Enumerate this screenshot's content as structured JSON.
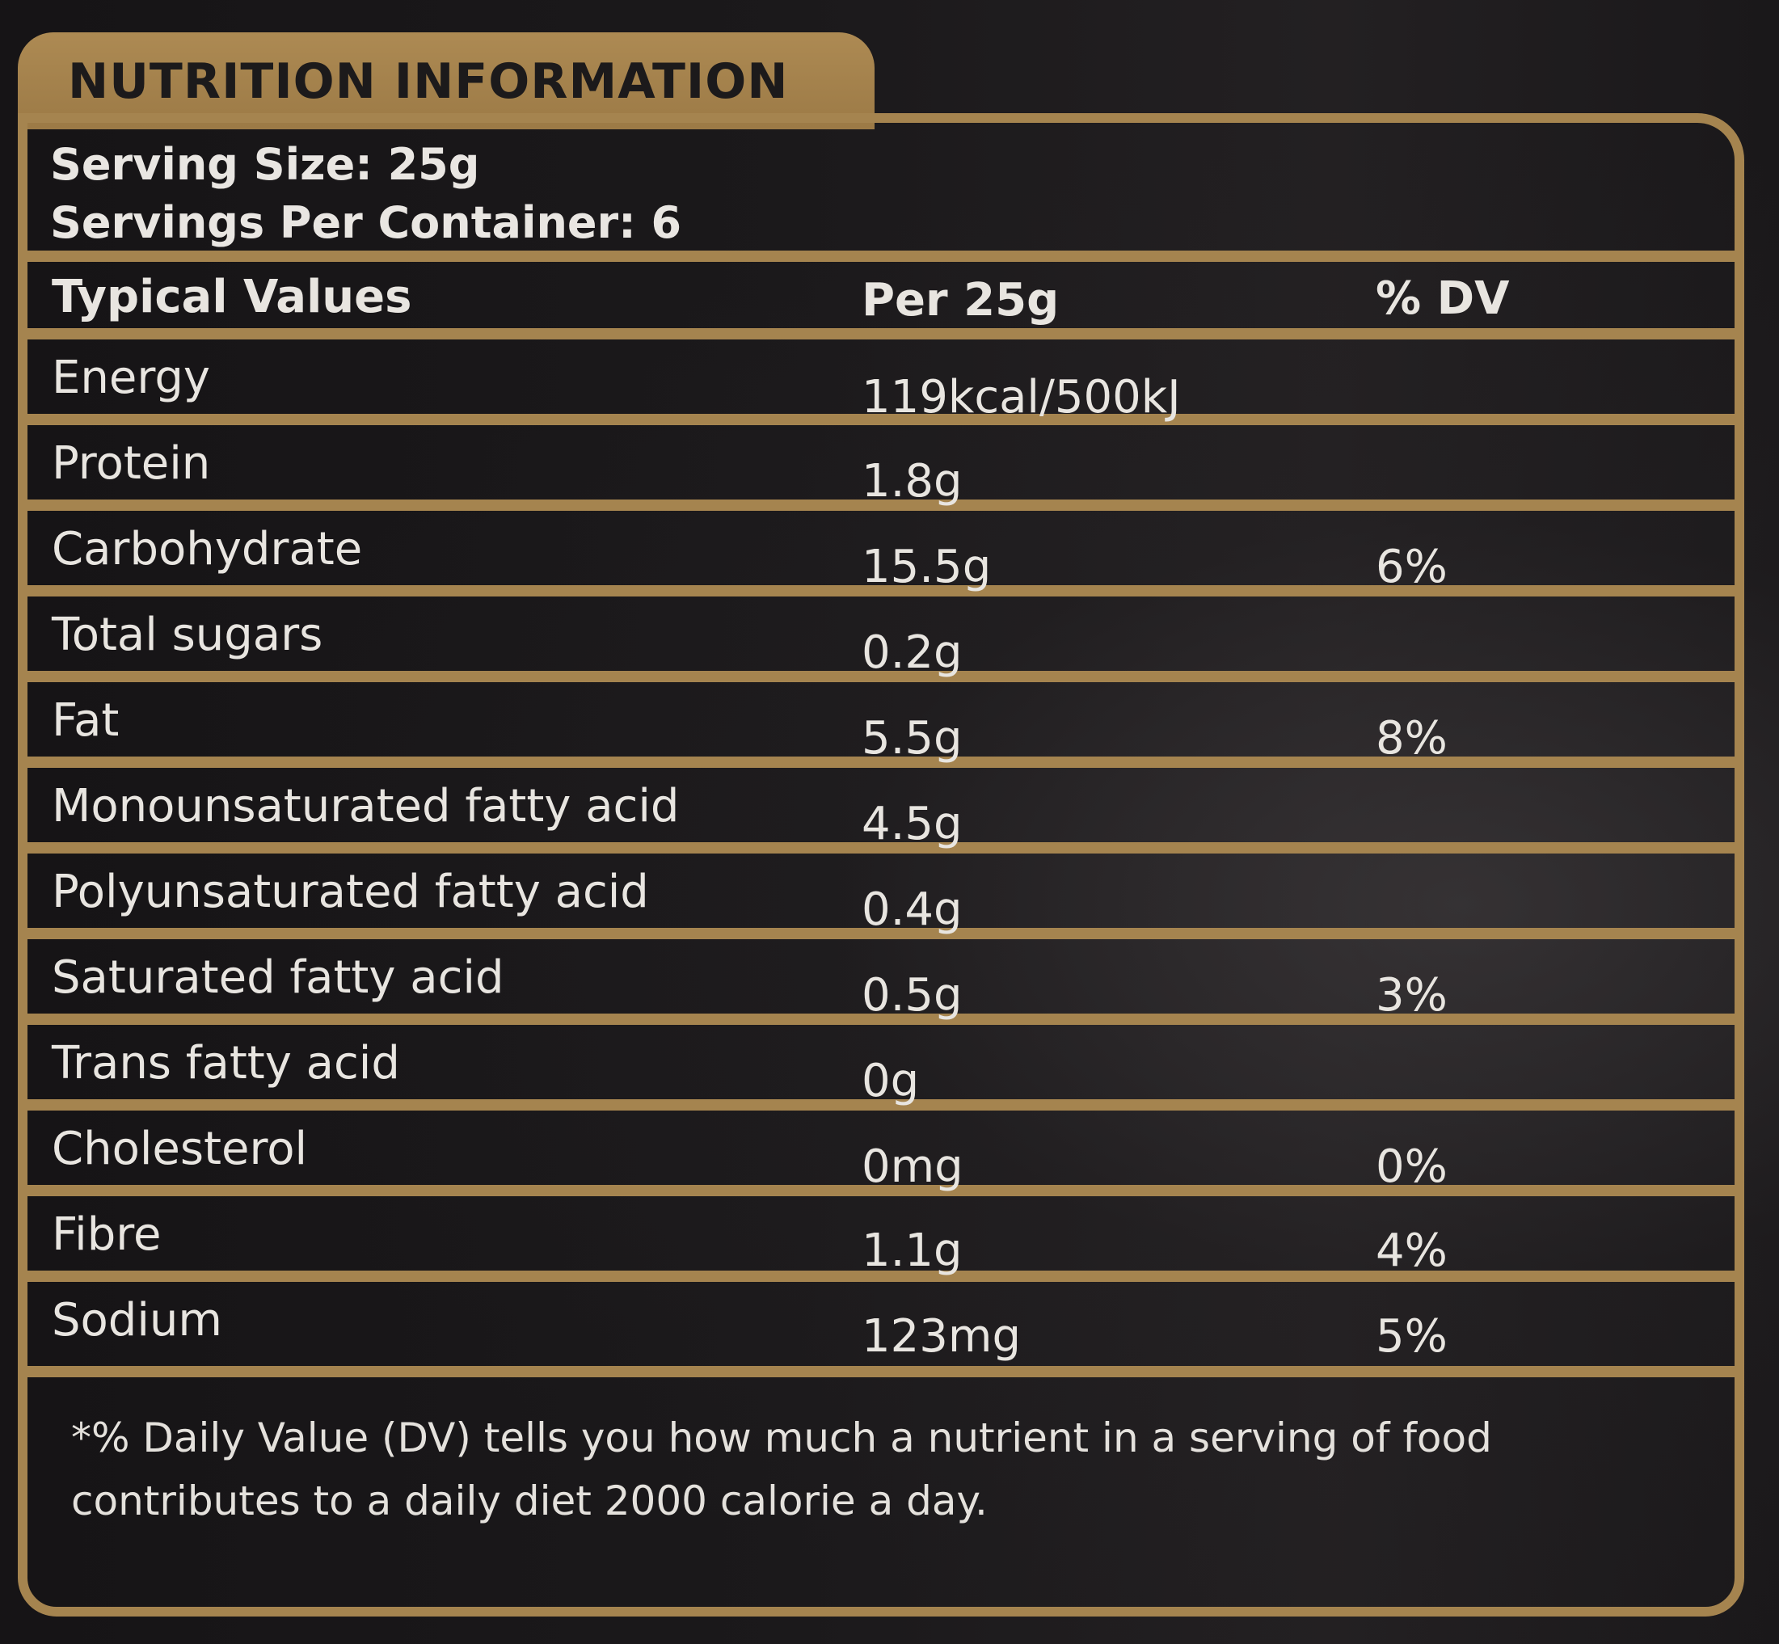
{
  "panel": {
    "title": "NUTRITION INFORMATION",
    "serving_size": "Serving Size: 25g",
    "servings_per_container": "Servings Per Container: 6"
  },
  "table": {
    "headers": [
      "Typical Values",
      "Per 25g",
      "% DV"
    ],
    "rows": [
      {
        "name": "Energy",
        "amount": "119kcal/500kJ",
        "dv": ""
      },
      {
        "name": "Protein",
        "amount": "1.8g",
        "dv": ""
      },
      {
        "name": "Carbohydrate",
        "amount": "15.5g",
        "dv": "6%"
      },
      {
        "name": "Total sugars",
        "amount": "0.2g",
        "dv": ""
      },
      {
        "name": "Fat",
        "amount": "5.5g",
        "dv": "8%"
      },
      {
        "name": "Monounsaturated fatty acid",
        "amount": "4.5g",
        "dv": ""
      },
      {
        "name": "Polyunsaturated fatty acid",
        "amount": "0.4g",
        "dv": ""
      },
      {
        "name": "Saturated fatty acid",
        "amount": "0.5g",
        "dv": "3%"
      },
      {
        "name": "Trans fatty acid",
        "amount": "0g",
        "dv": ""
      },
      {
        "name": "Cholesterol",
        "amount": "0mg",
        "dv": "0%"
      },
      {
        "name": "Fibre",
        "amount": "1.1g",
        "dv": "4%"
      },
      {
        "name": "Sodium",
        "amount": "123mg",
        "dv": "5%"
      }
    ]
  },
  "footnote": {
    "line1": "*% Daily Value (DV) tells you how much a nutrient in a serving of food",
    "line2": "contributes to a daily diet 2000 calorie a day."
  },
  "colors": {
    "gold": "#a5844f",
    "background": "#1b191b",
    "text": "#e8e5e0"
  }
}
